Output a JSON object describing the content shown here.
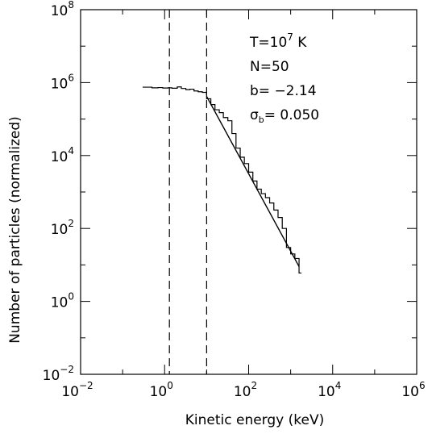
{
  "chart_data": {
    "type": "line",
    "xlabel": "Kinetic energy (keV)",
    "ylabel": "Number of particles (normalized)",
    "x_scale": "log",
    "y_scale": "log",
    "xlim": [
      0.01,
      1000000
    ],
    "ylim": [
      0.01,
      100000000
    ],
    "x_ticks": [
      {
        "base": "10",
        "exp": "−2",
        "value": 0.01
      },
      {
        "base": "10",
        "exp": "0",
        "value": 1
      },
      {
        "base": "10",
        "exp": "2",
        "value": 100
      },
      {
        "base": "10",
        "exp": "4",
        "value": 10000
      },
      {
        "base": "10",
        "exp": "6",
        "value": 1000000
      }
    ],
    "y_ticks": [
      {
        "base": "10",
        "exp": "−2",
        "value": 0.01
      },
      {
        "base": "10",
        "exp": "0",
        "value": 1
      },
      {
        "base": "10",
        "exp": "2",
        "value": 100
      },
      {
        "base": "10",
        "exp": "4",
        "value": 10000
      },
      {
        "base": "10",
        "exp": "6",
        "value": 1000000
      },
      {
        "base": "10",
        "exp": "8",
        "value": 100000000
      }
    ],
    "grid": false,
    "vertical_reference_lines": [
      {
        "x": 1.3,
        "style": "dashed"
      },
      {
        "x": 10,
        "style": "dashed"
      }
    ],
    "series": [
      {
        "kind": "histogram",
        "points": [
          [
            0.3,
            750000
          ],
          [
            0.5,
            720000
          ],
          [
            0.7,
            730000
          ],
          [
            0.9,
            710000
          ],
          [
            1.2,
            720000
          ],
          [
            1.5,
            700000
          ],
          [
            2.0,
            760000
          ],
          [
            2.5,
            690000
          ],
          [
            3.2,
            640000
          ],
          [
            4.0,
            660000
          ],
          [
            5.0,
            590000
          ],
          [
            6.3,
            560000
          ],
          [
            7.9,
            540000
          ],
          [
            10.0,
            360000
          ],
          [
            12.6,
            250000
          ],
          [
            15.8,
            180000
          ],
          [
            20.0,
            150000
          ],
          [
            25.0,
            110000
          ],
          [
            32.0,
            90000
          ],
          [
            40.0,
            40000
          ],
          [
            50.0,
            16000
          ],
          [
            63.0,
            9000
          ],
          [
            79.0,
            6000
          ],
          [
            100.0,
            3500
          ],
          [
            126.0,
            2000
          ],
          [
            158.0,
            1200
          ],
          [
            200.0,
            900
          ],
          [
            251.0,
            700
          ],
          [
            316.0,
            500
          ],
          [
            398.0,
            320
          ],
          [
            501.0,
            200
          ],
          [
            631.0,
            100
          ],
          [
            794.0,
            30
          ],
          [
            1000.0,
            20
          ],
          [
            1259.0,
            15
          ],
          [
            1585.0,
            6
          ]
        ]
      },
      {
        "kind": "power-law-fit",
        "points": [
          [
            10,
            420000
          ],
          [
            1585,
            9
          ]
        ]
      }
    ],
    "annotations": [
      {
        "line": "T=10",
        "sup": "7",
        "suffix": " K"
      },
      {
        "line": "N=50"
      },
      {
        "line": "b= −2.14"
      },
      {
        "line": "σ",
        "sub": "b",
        "suffix": "= 0.050"
      }
    ]
  }
}
